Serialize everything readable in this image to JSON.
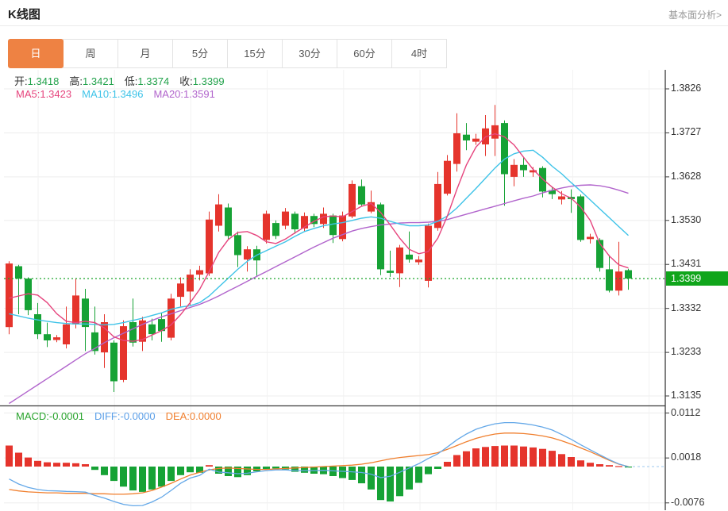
{
  "header": {
    "title": "K线图",
    "link": "基本面分析>"
  },
  "tabs": {
    "items": [
      "日",
      "周",
      "月",
      "5分",
      "15分",
      "30分",
      "60分",
      "4时"
    ],
    "active_index": 0
  },
  "info_bar": {
    "ohlc": [
      {
        "label": "开:",
        "value": "1.3418"
      },
      {
        "label": "高:",
        "value": "1.3421"
      },
      {
        "label": "低:",
        "value": "1.3374"
      },
      {
        "label": "收:",
        "value": "1.3399"
      }
    ],
    "ma": [
      {
        "label": "MA5:",
        "value": "1.3423",
        "color": "#e6447d"
      },
      {
        "label": "MA10:",
        "value": "1.3496",
        "color": "#3ec3e8"
      },
      {
        "label": "MA20:",
        "value": "1.3591",
        "color": "#b164cc"
      }
    ]
  },
  "macd_bar": [
    {
      "label": "MACD:",
      "value": "-0.0001",
      "color": "#28a32c"
    },
    {
      "label": "DIFF:",
      "value": "-0.0000",
      "color": "#5b9fe8"
    },
    {
      "label": "DEA:",
      "value": "0.0000",
      "color": "#f07f2e"
    }
  ],
  "colors": {
    "up": "#e5342c",
    "down": "#16a235",
    "value_green": "#21a24b",
    "tag_bg": "#10a51b",
    "ma5": "#e6447d",
    "ma10": "#3ec3e8",
    "ma20": "#b164cc",
    "diff_line": "#64a8e8",
    "dea_line": "#f07f2e",
    "active_tab": "#ee8243",
    "axis": "#3c3c3c",
    "grid": "#ededed",
    "current_line": "#18a428"
  },
  "chart_data": {
    "type": "candlestick_with_macd",
    "price_axis": {
      "ticks": [
        1.3826,
        1.3727,
        1.3628,
        1.353,
        1.3431,
        1.3332,
        1.3233,
        1.3135
      ],
      "current": "1.3399",
      "current_value": 1.3399
    },
    "macd_axis": {
      "ticks": [
        0.0112,
        0.0018,
        -0.0076
      ]
    },
    "candles_ochl_note": "each candle = [open, close, low, high]; red = close>=open (CN convention)",
    "candles": [
      [
        1.329,
        1.3433,
        1.3274,
        1.3438
      ],
      [
        1.3427,
        1.3399,
        1.3319,
        1.343
      ],
      [
        1.3399,
        1.3328,
        1.3317,
        1.3402
      ],
      [
        1.3319,
        1.3274,
        1.3263,
        1.3344
      ],
      [
        1.3274,
        1.326,
        1.3245,
        1.33
      ],
      [
        1.3261,
        1.3267,
        1.3256,
        1.3272
      ],
      [
        1.3251,
        1.3296,
        1.3242,
        1.3336
      ],
      [
        1.3296,
        1.3361,
        1.3287,
        1.3399
      ],
      [
        1.3354,
        1.329,
        1.3236,
        1.3376
      ],
      [
        1.3278,
        1.3236,
        1.3228,
        1.3336
      ],
      [
        1.3233,
        1.3301,
        1.3198,
        1.3319
      ],
      [
        1.3255,
        1.3168,
        1.3144,
        1.326
      ],
      [
        1.3171,
        1.3292,
        1.3166,
        1.3305
      ],
      [
        1.3301,
        1.3255,
        1.3246,
        1.3354
      ],
      [
        1.3257,
        1.3305,
        1.3236,
        1.3313
      ],
      [
        1.3296,
        1.3274,
        1.326,
        1.3309
      ],
      [
        1.3308,
        1.3281,
        1.3257,
        1.3322
      ],
      [
        1.3266,
        1.3354,
        1.326,
        1.3365
      ],
      [
        1.3358,
        1.3388,
        1.3336,
        1.3402
      ],
      [
        1.337,
        1.3408,
        1.334,
        1.342
      ],
      [
        1.3408,
        1.3418,
        1.3395,
        1.3428
      ],
      [
        1.3411,
        1.3532,
        1.3405,
        1.355
      ],
      [
        1.3518,
        1.3566,
        1.3505,
        1.3589
      ],
      [
        1.3559,
        1.3495,
        1.3488,
        1.3568
      ],
      [
        1.3497,
        1.3452,
        1.3425,
        1.3505
      ],
      [
        1.3442,
        1.3465,
        1.3415,
        1.3472
      ],
      [
        1.3465,
        1.344,
        1.3405,
        1.3473
      ],
      [
        1.3486,
        1.3545,
        1.3478,
        1.3552
      ],
      [
        1.3524,
        1.3495,
        1.3488,
        1.353
      ],
      [
        1.3518,
        1.355,
        1.351,
        1.3558
      ],
      [
        1.3545,
        1.351,
        1.35,
        1.355
      ],
      [
        1.3512,
        1.354,
        1.3505,
        1.3548
      ],
      [
        1.354,
        1.3522,
        1.3515,
        1.3545
      ],
      [
        1.3522,
        1.3545,
        1.3513,
        1.3559
      ],
      [
        1.3541,
        1.3497,
        1.3479,
        1.3545
      ],
      [
        1.3488,
        1.3541,
        1.3483,
        1.355
      ],
      [
        1.3539,
        1.3612,
        1.3535,
        1.362
      ],
      [
        1.3607,
        1.3566,
        1.3562,
        1.3622
      ],
      [
        1.355,
        1.3571,
        1.3546,
        1.3597
      ],
      [
        1.3566,
        1.342,
        1.3407,
        1.357
      ],
      [
        1.3417,
        1.3412,
        1.3403,
        1.3462
      ],
      [
        1.3411,
        1.3469,
        1.338,
        1.3475
      ],
      [
        1.3453,
        1.3442,
        1.3435,
        1.3505
      ],
      [
        1.3436,
        1.3442,
        1.343,
        1.345
      ],
      [
        1.3394,
        1.3518,
        1.3379,
        1.3523
      ],
      [
        1.3513,
        1.3612,
        1.3507,
        1.3639
      ],
      [
        1.359,
        1.3664,
        1.3586,
        1.3677
      ],
      [
        1.3657,
        1.3726,
        1.364,
        1.3771
      ],
      [
        1.3723,
        1.371,
        1.3688,
        1.3749
      ],
      [
        1.3707,
        1.3714,
        1.37,
        1.3725
      ],
      [
        1.3701,
        1.3737,
        1.3675,
        1.3767
      ],
      [
        1.3714,
        1.3744,
        1.3675,
        1.379
      ],
      [
        1.3749,
        1.3634,
        1.3563,
        1.3755
      ],
      [
        1.3628,
        1.3655,
        1.3607,
        1.3668
      ],
      [
        1.3655,
        1.3643,
        1.3628,
        1.3672
      ],
      [
        1.3638,
        1.3643,
        1.3628,
        1.365
      ],
      [
        1.3648,
        1.3595,
        1.3582,
        1.3652
      ],
      [
        1.3598,
        1.3589,
        1.3578,
        1.3605
      ],
      [
        1.3577,
        1.3584,
        1.3566,
        1.3596
      ],
      [
        1.3583,
        1.3578,
        1.3547,
        1.36
      ],
      [
        1.3584,
        1.3486,
        1.3482,
        1.3588
      ],
      [
        1.3488,
        1.3493,
        1.3478,
        1.35
      ],
      [
        1.3486,
        1.3423,
        1.3415,
        1.349
      ],
      [
        1.342,
        1.3372,
        1.3368,
        1.3452
      ],
      [
        1.3372,
        1.3415,
        1.3361,
        1.3482
      ],
      [
        1.3418,
        1.3399,
        1.3374,
        1.3421
      ]
    ],
    "ma5": [
      1.3355,
      1.336,
      1.3365,
      1.3362,
      1.3345,
      1.332,
      1.3303,
      1.33,
      1.3303,
      1.33,
      1.3288,
      1.3268,
      1.326,
      1.3258,
      1.3262,
      1.3272,
      1.3282,
      1.3295,
      1.3318,
      1.3345,
      1.3375,
      1.3415,
      1.3458,
      1.3487,
      1.3503,
      1.3505,
      1.3496,
      1.3482,
      1.3478,
      1.3488,
      1.3502,
      1.3515,
      1.3528,
      1.3538,
      1.354,
      1.3538,
      1.355,
      1.3562,
      1.3568,
      1.3548,
      1.352,
      1.349,
      1.3465,
      1.3455,
      1.346,
      1.349,
      1.354,
      1.36,
      1.3655,
      1.3695,
      1.3718,
      1.3725,
      1.3718,
      1.37,
      1.3672,
      1.3645,
      1.3623,
      1.3605,
      1.359,
      1.358,
      1.356,
      1.353,
      1.3478,
      1.345,
      1.343,
      1.3423
    ],
    "ma10": [
      1.332,
      1.3315,
      1.331,
      1.3306,
      1.3303,
      1.33,
      1.3298,
      1.3297,
      1.3297,
      1.3296,
      1.3295,
      1.3296,
      1.33,
      1.3305,
      1.331,
      1.3316,
      1.3322,
      1.333,
      1.3335,
      1.3338,
      1.3345,
      1.336,
      1.338,
      1.34,
      1.342,
      1.3438,
      1.3452,
      1.3462,
      1.3472,
      1.3482,
      1.3494,
      1.3505,
      1.3512,
      1.3518,
      1.3522,
      1.3525,
      1.353,
      1.3535,
      1.3538,
      1.3535,
      1.3528,
      1.3522,
      1.3518,
      1.3518,
      1.352,
      1.3528,
      1.354,
      1.3558,
      1.358,
      1.3602,
      1.3625,
      1.3648,
      1.3668,
      1.368,
      1.3686,
      1.3688,
      1.3672,
      1.3652,
      1.3635,
      1.3615,
      1.3596,
      1.3576,
      1.3556,
      1.3536,
      1.3516,
      1.3496
    ],
    "ma20": [
      1.3118,
      1.3132,
      1.3146,
      1.316,
      1.3174,
      1.3188,
      1.3202,
      1.3216,
      1.323,
      1.3242,
      1.3255,
      1.3266,
      1.3276,
      1.3286,
      1.3296,
      1.3305,
      1.3313,
      1.332,
      1.3327,
      1.3334,
      1.3341,
      1.335,
      1.336,
      1.3371,
      1.3382,
      1.3393,
      1.3404,
      1.3415,
      1.3426,
      1.3437,
      1.3448,
      1.3459,
      1.347,
      1.348,
      1.349,
      1.3498,
      1.3506,
      1.3512,
      1.3516,
      1.352,
      1.3522,
      1.3524,
      1.3525,
      1.3525,
      1.3526,
      1.3528,
      1.3532,
      1.3538,
      1.3544,
      1.355,
      1.3556,
      1.3562,
      1.3568,
      1.3574,
      1.358,
      1.3585,
      1.3592,
      1.3598,
      1.3603,
      1.3607,
      1.3609,
      1.361,
      1.3608,
      1.3604,
      1.3598,
      1.3591
    ],
    "macd_hist": [
      0.0044,
      0.0029,
      0.0019,
      0.0012,
      0.0009,
      0.0008,
      0.0008,
      0.0007,
      0.0005,
      -0.0007,
      -0.0018,
      -0.003,
      -0.0042,
      -0.005,
      -0.0053,
      -0.0048,
      -0.0042,
      -0.003,
      -0.0018,
      -0.0012,
      -0.0013,
      0.0003,
      -0.0015,
      -0.002,
      -0.0022,
      -0.0018,
      -0.001,
      -0.0005,
      -0.0004,
      -0.0006,
      -0.0011,
      -0.0013,
      -0.0015,
      -0.0016,
      -0.002,
      -0.0024,
      -0.0028,
      -0.0035,
      -0.0048,
      -0.007,
      -0.0073,
      -0.0062,
      -0.0048,
      -0.0034,
      -0.0016,
      -0.0005,
      0.001,
      0.0024,
      0.0032,
      0.0038,
      0.0041,
      0.0043,
      0.0044,
      0.0044,
      0.0042,
      0.004,
      0.0037,
      0.0033,
      0.0026,
      0.002,
      0.0013,
      0.0008,
      0.0005,
      0.0003,
      0.0001,
      -0.0001
    ],
    "dea": [
      -0.0048,
      -0.0051,
      -0.0053,
      -0.0054,
      -0.0055,
      -0.0055,
      -0.0056,
      -0.0056,
      -0.0056,
      -0.0057,
      -0.0057,
      -0.0058,
      -0.0058,
      -0.0057,
      -0.0055,
      -0.005,
      -0.0043,
      -0.0035,
      -0.0026,
      -0.0018,
      -0.0012,
      -0.0007,
      -0.0004,
      -0.0003,
      -0.0004,
      -0.0005,
      -0.0006,
      -0.0006,
      -0.0005,
      -0.0004,
      -0.0003,
      -0.0002,
      -0.0001,
      0.0,
      0.0001,
      0.0002,
      0.0003,
      0.0005,
      0.0008,
      0.0012,
      0.0016,
      0.0019,
      0.0021,
      0.0023,
      0.0025,
      0.0029,
      0.0036,
      0.0044,
      0.0052,
      0.0059,
      0.0064,
      0.0068,
      0.007,
      0.007,
      0.0069,
      0.0067,
      0.0064,
      0.006,
      0.0054,
      0.0047,
      0.0039,
      0.0031,
      0.0022,
      0.0013,
      0.0005,
      0.0
    ],
    "diff_note": "DIFF line = dea[i] + macd_hist[i]/2"
  }
}
